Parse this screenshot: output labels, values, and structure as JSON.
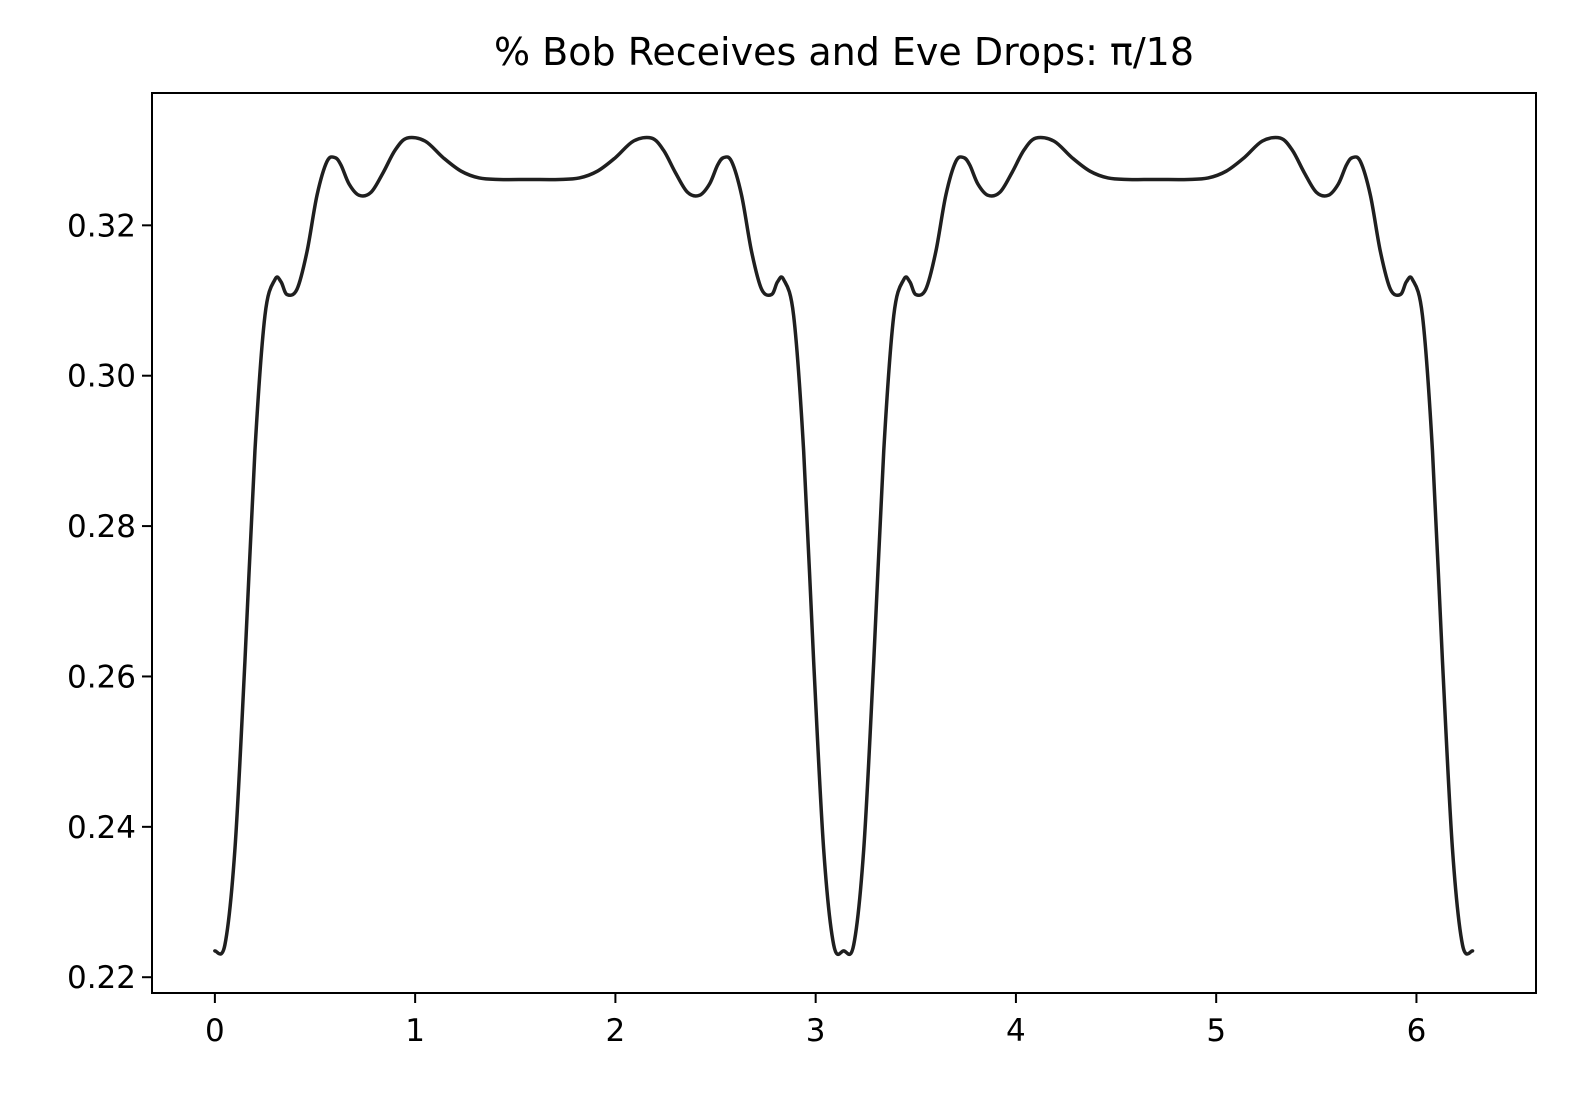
{
  "chart_data": {
    "type": "line",
    "title": "% Bob Receives and Eve Drops: π/18",
    "xlabel": "",
    "ylabel": "",
    "xlim": [
      -0.314,
      6.597
    ],
    "ylim": [
      0.2179,
      0.3376
    ],
    "x_ticks": [
      0,
      1,
      2,
      3,
      4,
      5,
      6
    ],
    "x_tick_labels": [
      "0",
      "1",
      "2",
      "3",
      "4",
      "5",
      "6"
    ],
    "y_ticks": [
      0.22,
      0.24,
      0.26,
      0.28,
      0.3,
      0.32
    ],
    "y_tick_labels": [
      "0.22",
      "0.24",
      "0.26",
      "0.28",
      "0.30",
      "0.32"
    ],
    "grid": false,
    "line_color": "#1f1f1f",
    "series": [
      {
        "x": [
          0.0,
          0.05,
          0.1,
          0.15,
          0.2,
          0.25,
          0.3,
          0.33,
          0.36,
          0.41,
          0.46,
          0.51,
          0.56,
          0.6,
          0.63,
          0.67,
          0.72,
          0.78,
          0.84,
          0.9,
          0.96,
          1.05,
          1.14,
          1.23,
          1.32,
          1.42,
          1.57,
          1.72,
          1.82,
          1.91,
          2.0,
          2.09,
          2.18,
          2.24,
          2.3,
          2.36,
          2.42,
          2.47,
          2.51,
          2.54,
          2.58,
          2.63,
          2.68,
          2.73,
          2.78,
          2.81,
          2.84,
          2.89,
          2.94,
          2.99,
          3.04,
          3.09,
          3.14,
          3.19,
          3.24,
          3.29,
          3.34,
          3.39,
          3.44,
          3.47,
          3.5,
          3.55,
          3.6,
          3.65,
          3.7,
          3.74,
          3.77,
          3.81,
          3.86,
          3.92,
          3.98,
          4.04,
          4.1,
          4.19,
          4.28,
          4.37,
          4.46,
          4.56,
          4.71,
          4.86,
          4.96,
          5.05,
          5.14,
          5.23,
          5.32,
          5.38,
          5.44,
          5.5,
          5.56,
          5.61,
          5.65,
          5.68,
          5.72,
          5.77,
          5.82,
          5.87,
          5.92,
          5.95,
          5.98,
          6.03,
          6.08,
          6.13,
          6.18,
          6.23,
          6.28
        ],
        "y": [
          0.2235,
          0.2243,
          0.237,
          0.262,
          0.29,
          0.308,
          0.3128,
          0.3125,
          0.3108,
          0.3115,
          0.3165,
          0.324,
          0.3285,
          0.329,
          0.328,
          0.3255,
          0.324,
          0.3244,
          0.327,
          0.33,
          0.3316,
          0.3312,
          0.329,
          0.3272,
          0.3263,
          0.3261,
          0.3261,
          0.3261,
          0.3263,
          0.3272,
          0.329,
          0.3312,
          0.3316,
          0.33,
          0.327,
          0.3244,
          0.324,
          0.3255,
          0.328,
          0.329,
          0.3285,
          0.324,
          0.3165,
          0.3115,
          0.3108,
          0.3125,
          0.3128,
          0.308,
          0.29,
          0.262,
          0.237,
          0.2243,
          0.2235,
          0.2243,
          0.237,
          0.262,
          0.29,
          0.308,
          0.3128,
          0.3125,
          0.3108,
          0.3115,
          0.3165,
          0.324,
          0.3285,
          0.329,
          0.328,
          0.3255,
          0.324,
          0.3244,
          0.327,
          0.33,
          0.3316,
          0.3312,
          0.329,
          0.3272,
          0.3263,
          0.3261,
          0.3261,
          0.3261,
          0.3263,
          0.3272,
          0.329,
          0.3312,
          0.3316,
          0.33,
          0.327,
          0.3244,
          0.324,
          0.3255,
          0.328,
          0.329,
          0.3285,
          0.324,
          0.3165,
          0.3115,
          0.3108,
          0.3125,
          0.3128,
          0.308,
          0.29,
          0.262,
          0.237,
          0.2243,
          0.2235
        ]
      }
    ]
  }
}
